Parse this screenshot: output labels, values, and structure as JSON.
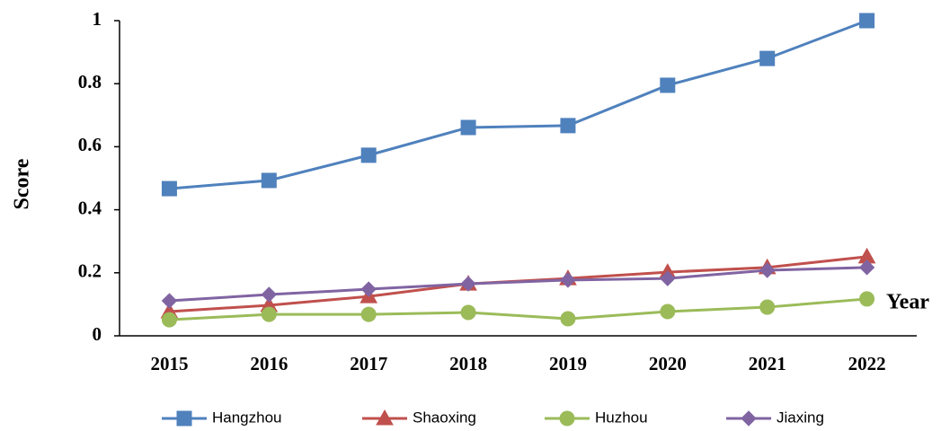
{
  "chart_data": {
    "type": "line",
    "categories": [
      "2015",
      "2016",
      "2017",
      "2018",
      "2019",
      "2020",
      "2021",
      "2022"
    ],
    "series": [
      {
        "name": "Hangzhou",
        "color": "#4f81bd",
        "marker": "square",
        "values": [
          0.467,
          0.493,
          0.573,
          0.661,
          0.667,
          0.795,
          0.88,
          1.0
        ]
      },
      {
        "name": "Shaoxing",
        "color": "#c0504d",
        "marker": "triangle",
        "values": [
          0.077,
          0.097,
          0.125,
          0.165,
          0.182,
          0.202,
          0.217,
          0.251
        ]
      },
      {
        "name": "Huzhou",
        "color": "#9bbb59",
        "marker": "circle",
        "values": [
          0.051,
          0.068,
          0.068,
          0.074,
          0.054,
          0.077,
          0.091,
          0.117
        ]
      },
      {
        "name": "Jiaxing",
        "color": "#8064a2",
        "marker": "diamond",
        "values": [
          0.111,
          0.131,
          0.148,
          0.165,
          0.177,
          0.182,
          0.208,
          0.217
        ]
      }
    ],
    "ylabel": "Score",
    "xlabel": "Year",
    "ylim": [
      0,
      1
    ],
    "yticks": [
      0,
      0.2,
      0.4,
      0.6,
      0.8,
      1
    ],
    "grid": false,
    "legend": "bottom"
  }
}
